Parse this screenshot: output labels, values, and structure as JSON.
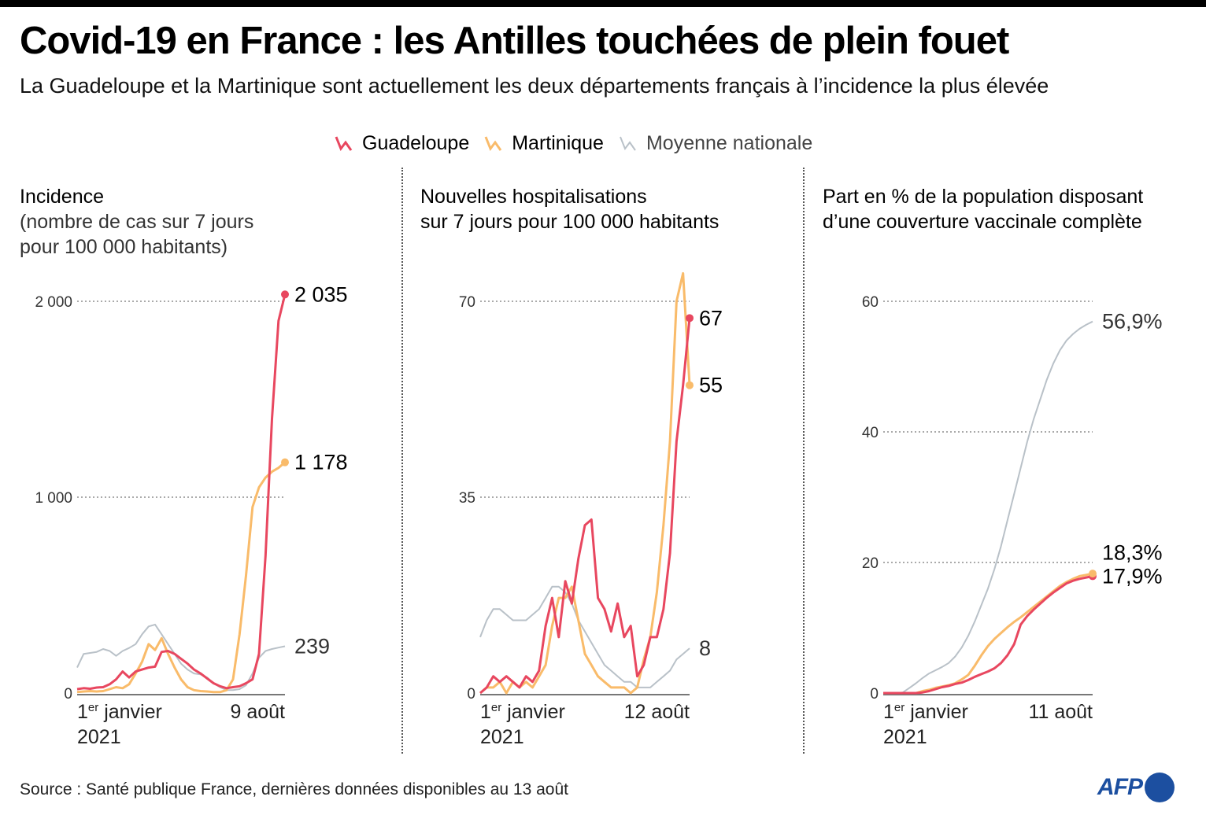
{
  "header": {
    "title": "Covid-19 en France : les Antilles touchées de plein fouet",
    "subtitle": "La Guadeloupe et la Martinique sont actuellement les deux départements français à l’incidence la plus élevée"
  },
  "legend": [
    {
      "label": "Guadeloupe",
      "color": "#e8475f",
      "icon": "line-sparkline-icon"
    },
    {
      "label": "Martinique",
      "color": "#f9bb6a",
      "icon": "line-sparkline-icon"
    },
    {
      "label": "Moyenne nationale",
      "color": "#b9c1c8",
      "icon": "line-sparkline-icon"
    }
  ],
  "colors": {
    "guadeloupe": "#e8475f",
    "martinique": "#f9bb6a",
    "national": "#b9c1c8",
    "axis": "#777777",
    "grid": "#555555",
    "afp_blue": "#1c4fa0"
  },
  "panels": [
    {
      "title_line1": "Incidence",
      "title_line2": "(nombre de cas sur 7 jours",
      "title_line3": "pour 100 000 habitants)"
    },
    {
      "title_line1": "Nouvelles hospitalisations",
      "title_line2": "sur 7 jours pour 100 000 habitants",
      "title_line3": ""
    },
    {
      "title_line1": "Part en % de la population disposant",
      "title_line2": "d’une couverture vaccinale complète",
      "title_line3": ""
    }
  ],
  "chart_data": [
    {
      "type": "line",
      "title": "Incidence (nombre de cas sur 7 jours pour 100 000 habitants)",
      "xlabel": "",
      "ylabel": "",
      "x_start_label": {
        "main": "1",
        "sup": "er",
        "rest": " janvier",
        "year": "2021"
      },
      "x_end_label": "9 août",
      "yticks": [
        0,
        1000,
        2000
      ],
      "ytick_labels": [
        "0",
        "1 000",
        "2 000"
      ],
      "ylim": [
        0,
        2000
      ],
      "grid": "horizontal dotted",
      "x_days": [
        0,
        7,
        14,
        21,
        28,
        35,
        42,
        49,
        56,
        63,
        70,
        77,
        84,
        91,
        98,
        105,
        112,
        119,
        126,
        133,
        140,
        147,
        154,
        161,
        168,
        175,
        182,
        189,
        196,
        203,
        210,
        217,
        224
      ],
      "series": [
        {
          "name": "Guadeloupe",
          "end_label": "2 035",
          "values": [
            20,
            25,
            22,
            28,
            30,
            45,
            70,
            110,
            80,
            110,
            120,
            130,
            135,
            210,
            215,
            200,
            175,
            150,
            120,
            100,
            75,
            50,
            35,
            25,
            30,
            35,
            50,
            70,
            200,
            700,
            1400,
            1900,
            2035
          ]
        },
        {
          "name": "Martinique",
          "end_label": "1 178",
          "values": [
            5,
            8,
            10,
            8,
            10,
            20,
            30,
            25,
            45,
            100,
            160,
            250,
            220,
            280,
            200,
            130,
            70,
            30,
            15,
            10,
            8,
            5,
            5,
            15,
            70,
            300,
            600,
            950,
            1050,
            1100,
            1130,
            1150,
            1178
          ]
        },
        {
          "name": "Moyenne nationale",
          "end_label": "239",
          "values": [
            130,
            200,
            205,
            210,
            225,
            215,
            190,
            215,
            230,
            250,
            300,
            340,
            350,
            300,
            250,
            200,
            150,
            120,
            100,
            95,
            80,
            50,
            30,
            15,
            15,
            20,
            40,
            100,
            180,
            215,
            225,
            232,
            239
          ]
        }
      ]
    },
    {
      "type": "line",
      "title": "Nouvelles hospitalisations sur 7 jours pour 100 000 habitants",
      "xlabel": "",
      "ylabel": "",
      "x_start_label": {
        "main": "1",
        "sup": "er",
        "rest": " janvier",
        "year": "2021"
      },
      "x_end_label": "12 août",
      "yticks": [
        0,
        35,
        70
      ],
      "ytick_labels": [
        "0",
        "35",
        "70"
      ],
      "ylim": [
        0,
        70
      ],
      "grid": "horizontal dotted",
      "x_days": [
        0,
        7,
        14,
        21,
        28,
        35,
        42,
        49,
        56,
        63,
        70,
        77,
        84,
        91,
        98,
        105,
        112,
        119,
        126,
        133,
        140,
        147,
        154,
        161,
        168,
        175,
        182,
        189,
        196,
        203,
        210,
        217,
        224
      ],
      "series": [
        {
          "name": "Guadeloupe",
          "end_label": "67",
          "values": [
            0,
            1,
            3,
            2,
            3,
            2,
            1,
            3,
            2,
            4,
            12,
            17,
            10,
            20,
            16,
            24,
            30,
            31,
            17,
            15,
            11,
            16,
            10,
            12,
            3,
            5,
            10,
            10,
            15,
            25,
            45,
            55,
            67
          ]
        },
        {
          "name": "Martinique",
          "end_label": "55",
          "values": [
            0,
            1,
            1,
            2,
            0,
            2,
            1,
            2,
            1,
            3,
            5,
            12,
            17,
            17,
            19,
            13,
            7,
            5,
            3,
            2,
            1,
            1,
            1,
            0,
            1,
            6,
            10,
            18,
            30,
            45,
            70,
            75,
            55
          ]
        },
        {
          "name": "Moyenne nationale",
          "end_label": "8",
          "values": [
            10,
            13,
            15,
            15,
            14,
            13,
            13,
            13,
            14,
            15,
            17,
            19,
            19,
            18,
            16,
            13,
            11,
            9,
            7,
            5,
            4,
            3,
            2,
            2,
            1,
            1,
            1,
            2,
            3,
            4,
            6,
            7,
            8
          ]
        }
      ]
    },
    {
      "type": "line",
      "title": "Part en % de la population disposant d’une couverture vaccinale complète",
      "xlabel": "",
      "ylabel": "",
      "x_start_label": {
        "main": "1",
        "sup": "er",
        "rest": " janvier",
        "year": "2021"
      },
      "x_end_label": "11 août",
      "yticks": [
        0,
        20,
        40,
        60
      ],
      "ytick_labels": [
        "0",
        "20",
        "40",
        "60"
      ],
      "ylim": [
        0,
        60
      ],
      "grid": "horizontal dotted",
      "x_days": [
        0,
        7,
        14,
        21,
        28,
        35,
        42,
        49,
        56,
        63,
        70,
        77,
        84,
        91,
        98,
        105,
        112,
        119,
        126,
        133,
        140,
        147,
        154,
        161,
        168,
        175,
        182,
        189,
        196,
        203,
        210,
        217,
        224
      ],
      "series": [
        {
          "name": "Guadeloupe",
          "end_label": "17,9%",
          "values": [
            0,
            0,
            0,
            0,
            0,
            0,
            0.1,
            0.3,
            0.6,
            0.9,
            1.1,
            1.4,
            1.6,
            2.0,
            2.5,
            2.9,
            3.3,
            3.8,
            4.6,
            5.8,
            7.5,
            10.5,
            11.8,
            12.8,
            13.7,
            14.6,
            15.4,
            16.1,
            16.8,
            17.2,
            17.5,
            17.7,
            17.9
          ]
        },
        {
          "name": "Martinique",
          "end_label": "18,3%",
          "values": [
            0,
            0,
            0,
            0,
            0,
            0,
            0.3,
            0.5,
            0.8,
            1.0,
            1.2,
            1.5,
            2.1,
            2.8,
            4.2,
            5.8,
            7.2,
            8.3,
            9.2,
            10.1,
            10.9,
            11.6,
            12.4,
            13.2,
            14.0,
            14.8,
            15.6,
            16.4,
            17.0,
            17.5,
            17.9,
            18.1,
            18.3
          ]
        },
        {
          "name": "Moyenne nationale",
          "end_label": "56,9%",
          "values": [
            0,
            0,
            0,
            0.1,
            0.8,
            1.5,
            2.3,
            3.0,
            3.5,
            4.0,
            4.6,
            5.6,
            7.0,
            8.8,
            11.0,
            13.5,
            16.0,
            19.0,
            22.5,
            26.5,
            30.5,
            34.5,
            38.5,
            42.0,
            45.0,
            48.0,
            50.5,
            52.5,
            54.0,
            55.0,
            55.8,
            56.4,
            56.9
          ]
        }
      ]
    }
  ],
  "footer": {
    "source": "Source : Santé publique France, dernières données disponibles au 13 août",
    "logo_text": "AFP"
  }
}
